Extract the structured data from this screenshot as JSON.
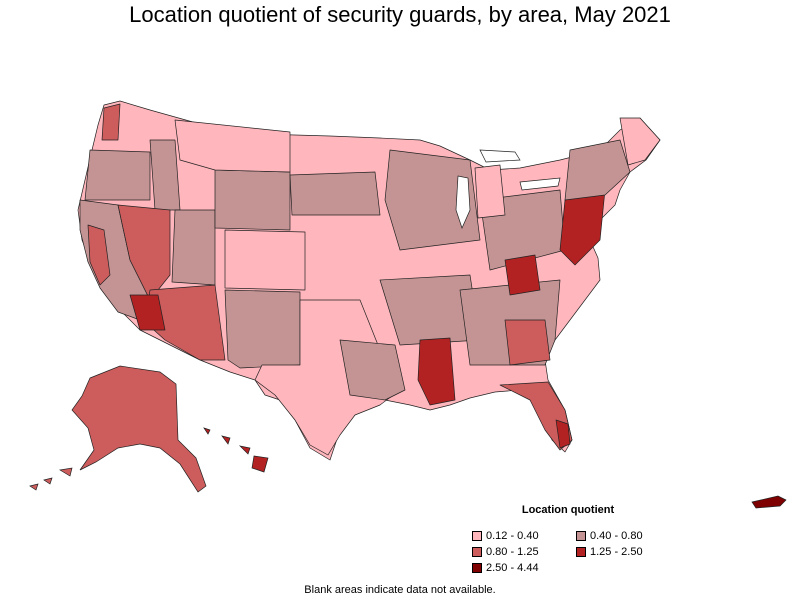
{
  "title": "Location quotient of security guards, by area, May 2021",
  "legend": {
    "title": "Location quotient",
    "items": [
      {
        "label": "0.12 - 0.40",
        "color": "#ffb6bc"
      },
      {
        "label": "0.40 - 0.80",
        "color": "#c49494"
      },
      {
        "label": "0.80 - 1.25",
        "color": "#cd5c5c"
      },
      {
        "label": "1.25 - 2.50",
        "color": "#b22222"
      },
      {
        "label": "2.50 - 4.44",
        "color": "#7f0000"
      }
    ]
  },
  "footnote": "Blank areas indicate data not available."
}
